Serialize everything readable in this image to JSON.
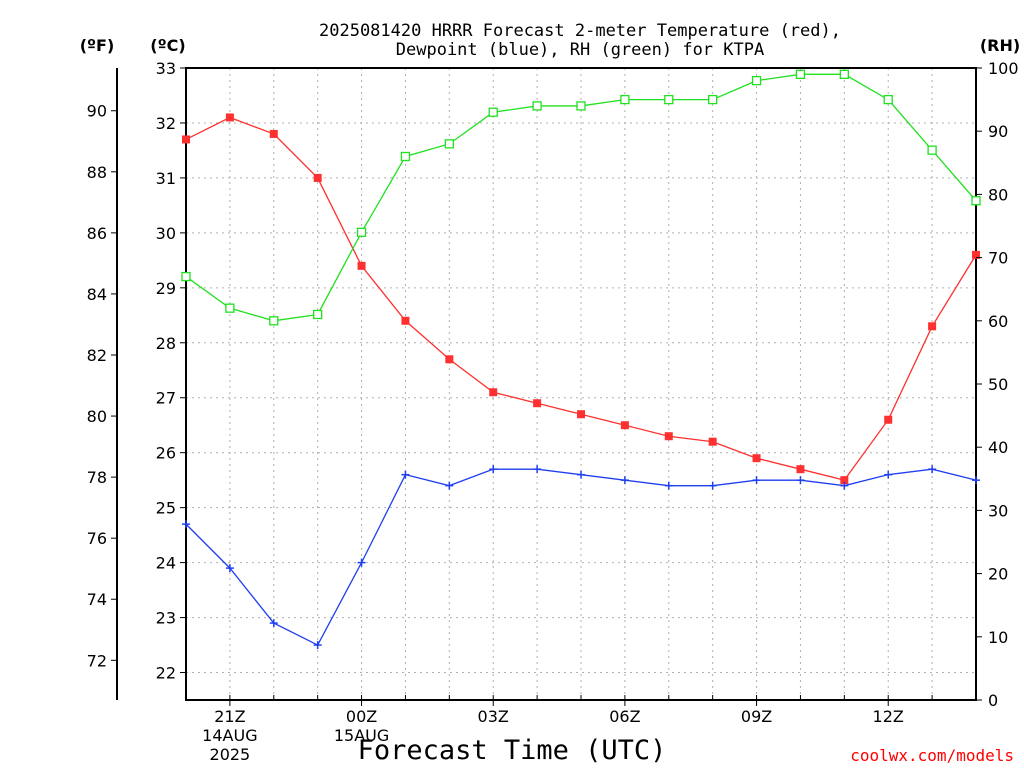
{
  "chart_data": {
    "type": "line",
    "title_line1": "2025081420 HRRR Forecast 2-meter Temperature (red),",
    "title_line2": "Dewpoint (blue), RH (green) for KTPA",
    "xlabel": "Forecast Time (UTC)",
    "credit": "coolwx.com/models",
    "units": {
      "fahrenheit": "(ºF)",
      "celsius": "(ºC)",
      "rh": "(RH)"
    },
    "x": [
      20,
      21,
      22,
      23,
      24,
      25,
      26,
      27,
      28,
      29,
      30,
      31,
      32,
      33,
      34,
      35,
      36,
      37,
      38
    ],
    "xlim": [
      20,
      38
    ],
    "xticks": [
      {
        "x": 21,
        "lines": [
          "21Z",
          "14AUG",
          "2025"
        ]
      },
      {
        "x": 24,
        "lines": [
          "00Z",
          "15AUG"
        ]
      },
      {
        "x": 27,
        "lines": [
          "03Z"
        ]
      },
      {
        "x": 30,
        "lines": [
          "06Z"
        ]
      },
      {
        "x": 33,
        "lines": [
          "09Z"
        ]
      },
      {
        "x": 36,
        "lines": [
          "12Z"
        ]
      }
    ],
    "y_celsius": {
      "range": [
        21.5,
        33.0
      ],
      "ticks": [
        22,
        23,
        24,
        25,
        26,
        27,
        28,
        29,
        30,
        31,
        32,
        33
      ]
    },
    "y_fahrenheit": {
      "range": [
        70.7,
        91.4
      ],
      "ticks": [
        72,
        74,
        76,
        78,
        80,
        82,
        84,
        86,
        88,
        90
      ]
    },
    "y_rh": {
      "range": [
        0,
        100
      ],
      "ticks": [
        0,
        10,
        20,
        30,
        40,
        50,
        60,
        70,
        80,
        90,
        100
      ]
    },
    "grid": true,
    "series": [
      {
        "key": "temperature",
        "color": "#ff3030",
        "marker": "filled-square",
        "axis": "celsius",
        "values": [
          31.7,
          32.1,
          31.8,
          31.0,
          29.4,
          28.4,
          27.7,
          27.1,
          26.9,
          26.7,
          26.5,
          26.3,
          26.2,
          25.9,
          25.7,
          25.5,
          26.6,
          28.3,
          29.6
        ]
      },
      {
        "key": "dewpoint",
        "color": "#1f3ff0",
        "marker": "plus",
        "axis": "celsius",
        "values": [
          24.7,
          23.9,
          22.9,
          22.5,
          24.0,
          25.6,
          25.4,
          25.7,
          25.7,
          25.6,
          25.5,
          25.4,
          25.4,
          25.5,
          25.5,
          25.4,
          25.6,
          25.7,
          25.5
        ]
      },
      {
        "key": "rh",
        "color": "#20e020",
        "marker": "open-square",
        "axis": "rh",
        "values": [
          67,
          62,
          60,
          61,
          74,
          86,
          88,
          93,
          94,
          94,
          95,
          95,
          95,
          98,
          99,
          99,
          95,
          87,
          79
        ]
      }
    ]
  }
}
